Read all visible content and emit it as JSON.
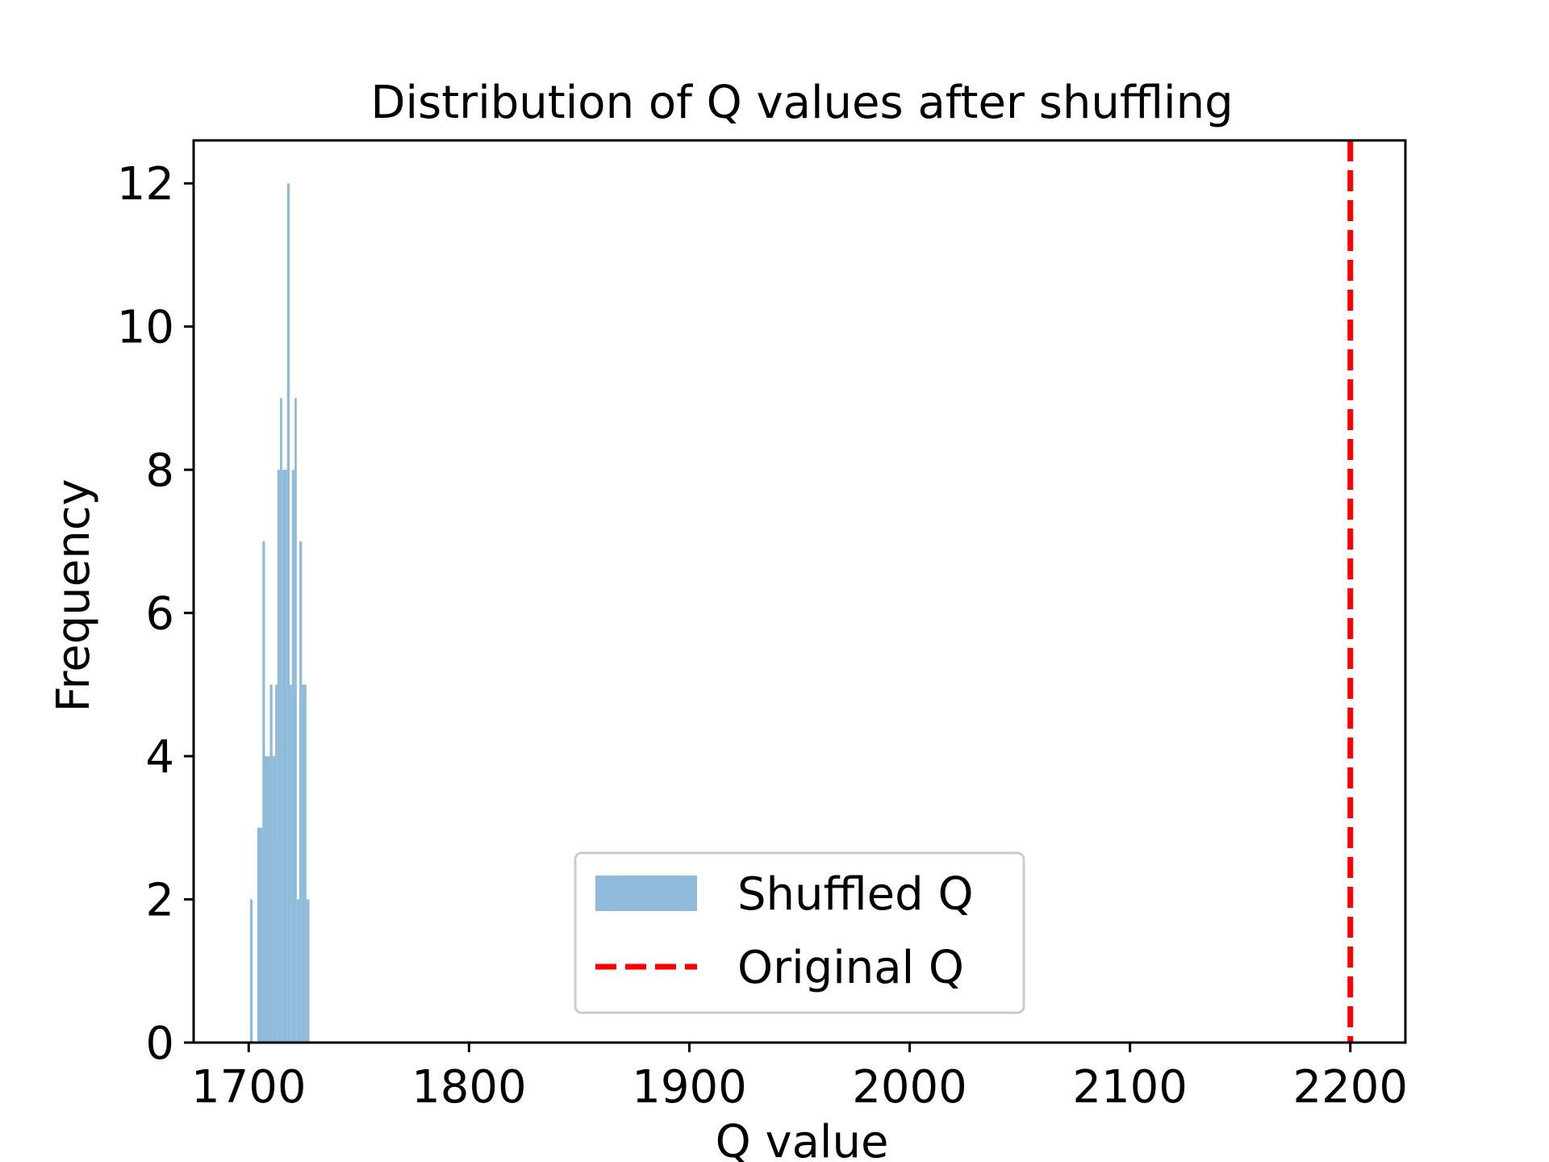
{
  "chart_data": {
    "type": "bar",
    "title": "Distribution of Q values after shuffling",
    "xlabel": "Q value",
    "ylabel": "Frequency",
    "xlim": [
      1675,
      2225
    ],
    "ylim": [
      0,
      12.6
    ],
    "xticks": [
      1700,
      1800,
      1900,
      2000,
      2100,
      2200
    ],
    "yticks": [
      0,
      2,
      4,
      6,
      8,
      10,
      12
    ],
    "grid": false,
    "legend_position": "lower center",
    "colors": {
      "histogram": "#8fbad9",
      "reference_line": "#ff0000",
      "frame": "#000000"
    },
    "series": [
      {
        "name": "Shuffled Q",
        "kind": "histogram",
        "bins": [
          {
            "x0": 1700.6,
            "x1": 1701.8,
            "count": 2
          },
          {
            "x0": 1703.9,
            "x1": 1706.2,
            "count": 3
          },
          {
            "x0": 1706.2,
            "x1": 1707.4,
            "count": 7
          },
          {
            "x0": 1707.4,
            "x1": 1709.6,
            "count": 4
          },
          {
            "x0": 1709.6,
            "x1": 1710.8,
            "count": 5
          },
          {
            "x0": 1710.8,
            "x1": 1712.0,
            "count": 4
          },
          {
            "x0": 1712.0,
            "x1": 1713.0,
            "count": 5
          },
          {
            "x0": 1713.0,
            "x1": 1714.2,
            "count": 8
          },
          {
            "x0": 1714.2,
            "x1": 1715.2,
            "count": 9
          },
          {
            "x0": 1715.2,
            "x1": 1717.4,
            "count": 8
          },
          {
            "x0": 1717.4,
            "x1": 1718.6,
            "count": 12
          },
          {
            "x0": 1718.6,
            "x1": 1719.6,
            "count": 5
          },
          {
            "x0": 1719.6,
            "x1": 1720.8,
            "count": 8
          },
          {
            "x0": 1720.8,
            "x1": 1721.8,
            "count": 9
          },
          {
            "x0": 1721.8,
            "x1": 1723.0,
            "count": 2
          },
          {
            "x0": 1723.0,
            "x1": 1724.2,
            "count": 7
          },
          {
            "x0": 1724.2,
            "x1": 1726.2,
            "count": 5
          },
          {
            "x0": 1726.2,
            "x1": 1727.6,
            "count": 2
          }
        ]
      },
      {
        "name": "Original Q",
        "kind": "vline",
        "x": 2200
      }
    ]
  }
}
